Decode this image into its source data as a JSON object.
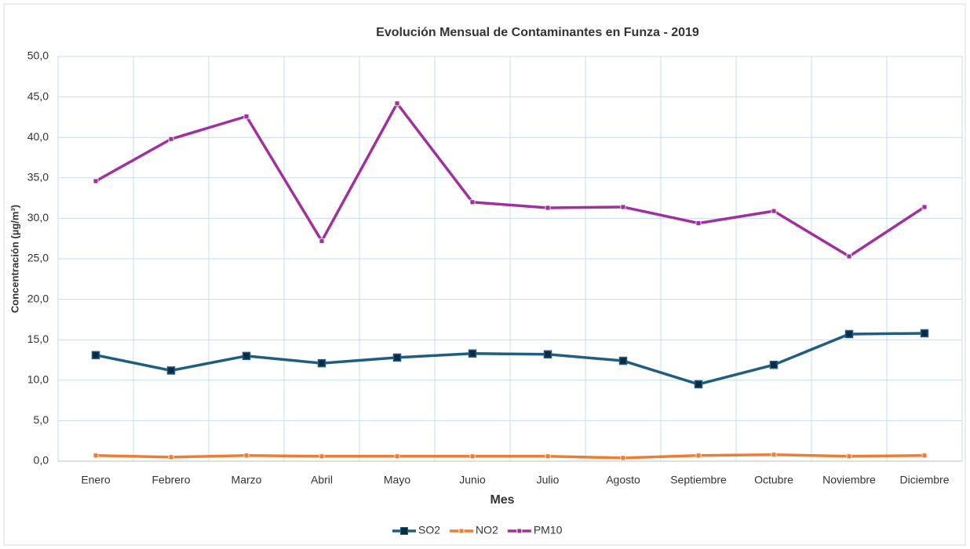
{
  "chart_data": {
    "type": "line",
    "title": "Evolución Mensual de Contaminantes en Funza - 2019",
    "x_label": "Mes",
    "y_label": "Concentración (µg/m³)",
    "categories": [
      "Enero",
      "Febrero",
      "Marzo",
      "Abril",
      "Mayo",
      "Junio",
      "Julio",
      "Agosto",
      "Septiembre",
      "Octubre",
      "Noviembre",
      "Diciembre"
    ],
    "series": [
      {
        "name": "SO2",
        "color": "#1f5e80",
        "values": [
          13.1,
          11.2,
          13.0,
          12.1,
          12.8,
          13.3,
          13.2,
          12.4,
          9.5,
          11.9,
          15.7,
          15.8
        ]
      },
      {
        "name": "NO2",
        "color": "#ed7d31",
        "values": [
          0.7,
          0.5,
          0.7,
          0.6,
          0.6,
          0.6,
          0.6,
          0.4,
          0.7,
          0.8,
          0.6,
          0.7
        ]
      },
      {
        "name": "PM10",
        "color": "#a0309e",
        "values": [
          34.6,
          39.8,
          42.6,
          27.2,
          44.2,
          32.0,
          31.3,
          31.4,
          29.4,
          30.9,
          25.3,
          31.4
        ]
      }
    ],
    "ylim": [
      0,
      50
    ],
    "yticks": [
      {
        "value": 0,
        "label": "0,0"
      },
      {
        "value": 5,
        "label": "5,0"
      },
      {
        "value": 10,
        "label": "10,0"
      },
      {
        "value": 15,
        "label": "15,0"
      },
      {
        "value": 20,
        "label": "20,0"
      },
      {
        "value": 25,
        "label": "25,0"
      },
      {
        "value": 30,
        "label": "30,0"
      },
      {
        "value": 35,
        "label": "35,0"
      },
      {
        "value": 40,
        "label": "40,0"
      },
      {
        "value": 45,
        "label": "45,0"
      },
      {
        "value": 50,
        "label": "50,0"
      }
    ],
    "grid": true,
    "legend": "bottom"
  }
}
